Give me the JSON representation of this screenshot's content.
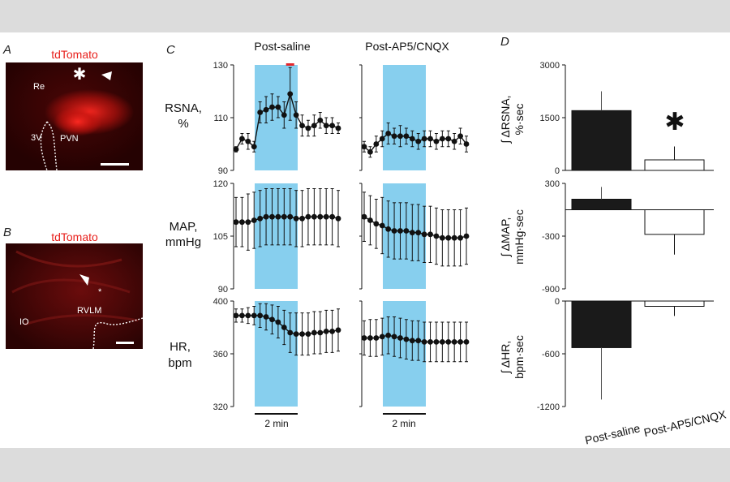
{
  "colors": {
    "page_bg": "#dcdcdc",
    "figure_bg": "#ffffff",
    "micrograph_bg": "#2a0303",
    "tdtomato": "#e8201c",
    "stim_band": "#87cfee",
    "trace": "#111111",
    "bar_saline": "#1a1a1a",
    "bar_ap5": "#ffffff",
    "max_marker": "#e3262c"
  },
  "panel_a": {
    "letter": "A",
    "title": "tdTomato",
    "labels": {
      "re": "Re",
      "pvn": "PVN",
      "third_ventricle": "3V",
      "asterisk": "✱"
    }
  },
  "panel_b": {
    "letter": "B",
    "title": "tdTomato",
    "labels": {
      "io": "IO",
      "rvlm": "RVLM",
      "asterisk": "*"
    }
  },
  "panel_c": {
    "letter": "C",
    "col_titles": [
      "Post-saline",
      "Post-AP5/CNQX"
    ],
    "scale_bar_label": "2 min"
  },
  "panel_d": {
    "letter": "D",
    "significance_mark": "✱"
  },
  "chart_data": [
    {
      "type": "line",
      "panel": "C",
      "title": "Post-saline",
      "ylabel": [
        "RSNA,",
        "%"
      ],
      "ylim": [
        90,
        130
      ],
      "yticks": [
        90,
        110,
        130
      ],
      "x": [
        1,
        2,
        3,
        4,
        5,
        6,
        7,
        8,
        9,
        10,
        11,
        12,
        13,
        14,
        15,
        16,
        17,
        18
      ],
      "stimulus_window": [
        4,
        12
      ],
      "values": [
        98,
        102,
        101,
        99,
        112,
        113,
        114,
        114,
        111,
        119,
        111,
        107,
        106,
        107,
        109,
        107,
        107,
        106
      ],
      "errors": [
        1,
        2,
        3,
        2,
        4,
        5,
        5,
        4,
        5,
        10,
        5,
        4,
        3,
        4,
        3,
        3,
        3,
        2
      ]
    },
    {
      "type": "line",
      "panel": "C",
      "title": "Post-AP5/CNQX",
      "ylabel": [
        "RSNA,",
        "%"
      ],
      "ylim": [
        90,
        130
      ],
      "x": [
        1,
        2,
        3,
        4,
        5,
        6,
        7,
        8,
        9,
        10,
        11,
        12,
        13,
        14,
        15,
        16,
        17,
        18
      ],
      "stimulus_window": [
        4,
        12
      ],
      "values": [
        99,
        97,
        100,
        102,
        104,
        103,
        103,
        103,
        102,
        101,
        102,
        102,
        101,
        102,
        102,
        101,
        103,
        100
      ],
      "errors": [
        2,
        2,
        3,
        3,
        4,
        3,
        4,
        3,
        3,
        3,
        3,
        3,
        3,
        3,
        3,
        3,
        3,
        3
      ]
    },
    {
      "type": "line",
      "panel": "C",
      "title": "Post-saline",
      "ylabel": [
        "MAP,",
        "mmHg"
      ],
      "ylim": [
        90,
        120
      ],
      "yticks": [
        90,
        105,
        120
      ],
      "x": [
        1,
        2,
        3,
        4,
        5,
        6,
        7,
        8,
        9,
        10,
        11,
        12,
        13,
        14,
        15,
        16,
        17,
        18
      ],
      "stimulus_window": [
        4,
        12
      ],
      "values": [
        109,
        109,
        109,
        109.5,
        110,
        110.5,
        110.5,
        110.5,
        110.5,
        110.5,
        110,
        110,
        110.5,
        110.5,
        110.5,
        110.5,
        110.5,
        110
      ],
      "errors": [
        7,
        7,
        8,
        8,
        8,
        8,
        8,
        8,
        8,
        8,
        8,
        8,
        8,
        8,
        8,
        8,
        8,
        8
      ]
    },
    {
      "type": "line",
      "panel": "C",
      "title": "Post-AP5/CNQX",
      "ylabel": [
        "MAP,",
        "mmHg"
      ],
      "ylim": [
        90,
        120
      ],
      "x": [
        1,
        2,
        3,
        4,
        5,
        6,
        7,
        8,
        9,
        10,
        11,
        12,
        13,
        14,
        15,
        16,
        17,
        18
      ],
      "stimulus_window": [
        4,
        12
      ],
      "values": [
        110.5,
        109.5,
        108.5,
        108,
        107,
        106.5,
        106.5,
        106.5,
        106,
        106,
        105.5,
        105.5,
        105,
        104.5,
        104.5,
        104.5,
        104.5,
        105
      ],
      "errors": [
        7,
        7,
        7,
        8,
        8,
        8,
        8,
        8,
        8,
        8,
        8,
        8,
        8,
        8,
        8,
        8,
        8,
        8
      ]
    },
    {
      "type": "line",
      "panel": "C",
      "title": "Post-saline",
      "ylabel": [
        "HR,",
        "bpm"
      ],
      "ylim": [
        320,
        400
      ],
      "yticks": [
        320,
        360,
        400
      ],
      "x": [
        1,
        2,
        3,
        4,
        5,
        6,
        7,
        8,
        9,
        10,
        11,
        12,
        13,
        14,
        15,
        16,
        17,
        18
      ],
      "stimulus_window": [
        4,
        12
      ],
      "values": [
        389,
        389,
        389,
        389,
        389,
        388,
        386,
        384,
        380,
        376,
        375,
        375,
        375,
        376,
        376,
        377,
        377,
        378
      ],
      "errors": [
        5,
        5,
        6,
        7,
        9,
        10,
        11,
        12,
        13,
        15,
        16,
        16,
        16,
        16,
        16,
        16,
        16,
        16
      ]
    },
    {
      "type": "line",
      "panel": "C",
      "title": "Post-AP5/CNQX",
      "ylabel": [
        "HR,",
        "bpm"
      ],
      "ylim": [
        320,
        400
      ],
      "x": [
        1,
        2,
        3,
        4,
        5,
        6,
        7,
        8,
        9,
        10,
        11,
        12,
        13,
        14,
        15,
        16,
        17,
        18
      ],
      "stimulus_window": [
        4,
        12
      ],
      "values": [
        372,
        372,
        372,
        373,
        374,
        373,
        372,
        371,
        370,
        370,
        369,
        369,
        369,
        369,
        369,
        369,
        369,
        369
      ],
      "errors": [
        13,
        14,
        14,
        14,
        14,
        15,
        15,
        15,
        15,
        15,
        15,
        15,
        15,
        15,
        15,
        15,
        15,
        15
      ]
    },
    {
      "type": "bar",
      "panel": "D",
      "categories": [
        "Post-saline",
        "Post-AP5/CNQX"
      ],
      "ylabel": [
        "∫ ΔRSNA,",
        "%·sec"
      ],
      "ylim": [
        0,
        3000
      ],
      "yticks": [
        0,
        1500,
        3000
      ],
      "values": [
        1700,
        300
      ],
      "errors": [
        550,
        380
      ]
    },
    {
      "type": "bar",
      "panel": "D",
      "categories": [
        "Post-saline",
        "Post-AP5/CNQX"
      ],
      "ylabel": [
        "∫ ΔMAP,",
        "mmHg·sec"
      ],
      "ylim": [
        -900,
        300
      ],
      "yticks": [
        -900,
        -300,
        300
      ],
      "values": [
        120,
        -280
      ],
      "errors": [
        140,
        230
      ]
    },
    {
      "type": "bar",
      "panel": "D",
      "categories": [
        "Post-saline",
        "Post-AP5/CNQX"
      ],
      "ylabel": [
        "∫ ΔHR,",
        "bpm·sec"
      ],
      "ylim": [
        -1200,
        0
      ],
      "yticks": [
        -1200,
        -600,
        0
      ],
      "values": [
        -530,
        -60
      ],
      "errors": [
        590,
        110
      ]
    }
  ]
}
